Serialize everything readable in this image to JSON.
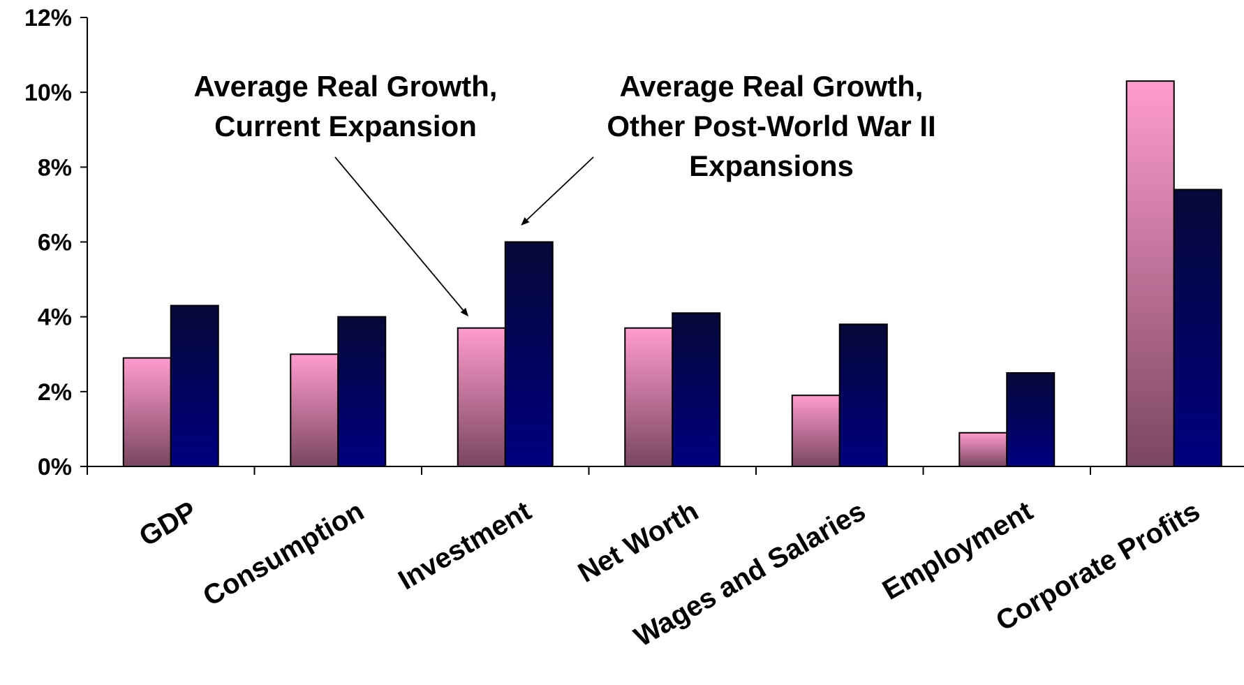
{
  "chart_data": {
    "type": "bar",
    "categories": [
      "GDP",
      "Consumption",
      "Investment",
      "Net Worth",
      "Wages and Salaries",
      "Employment",
      "Corporate Profits"
    ],
    "series": [
      {
        "name": "Average Real Growth, Current Expansion",
        "values": [
          2.9,
          3.0,
          3.7,
          3.7,
          1.9,
          0.9,
          10.3
        ]
      },
      {
        "name": "Average Real Growth, Other Post-World War II Expansions",
        "values": [
          4.3,
          4.0,
          6.0,
          4.1,
          3.8,
          2.5,
          7.4
        ]
      }
    ],
    "ylim": [
      0,
      12
    ],
    "yticks": [
      0,
      2,
      4,
      6,
      8,
      10,
      12
    ],
    "ytick_labels": [
      "0%",
      "2%",
      "4%",
      "6%",
      "8%",
      "10%",
      "12%"
    ],
    "annotations": [
      {
        "series": 0,
        "lines": [
          "Average Real Growth,",
          "Current Expansion"
        ],
        "points_to": "Investment"
      },
      {
        "series": 1,
        "lines": [
          "Average Real Growth,",
          "Other Post-World War II",
          "Expansions"
        ],
        "points_to": "Investment"
      }
    ],
    "grid": false,
    "colors": {
      "series_0_top": "#ff9ccf",
      "series_0_bottom": "#7a4660",
      "series_1_top": "#060838",
      "series_1_bottom": "#000080",
      "axis": "#000000"
    }
  }
}
